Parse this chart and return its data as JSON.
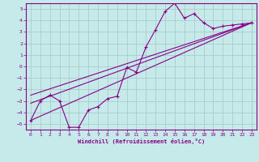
{
  "background_color": "#c6eaea",
  "grid_color": "#aacccc",
  "line_color": "#880088",
  "xlabel": "Windchill (Refroidissement éolien,°C)",
  "xlim": [
    -0.5,
    23.5
  ],
  "ylim": [
    -5.5,
    5.5
  ],
  "yticks": [
    -5,
    -4,
    -3,
    -2,
    -1,
    0,
    1,
    2,
    3,
    4,
    5
  ],
  "xticks": [
    0,
    1,
    2,
    3,
    4,
    5,
    6,
    7,
    8,
    9,
    10,
    11,
    12,
    13,
    14,
    15,
    16,
    17,
    18,
    19,
    20,
    21,
    22,
    23
  ],
  "line1_x": [
    0,
    1,
    2,
    3,
    4,
    5,
    6,
    7,
    8,
    9,
    10,
    11,
    12,
    13,
    14,
    15,
    16,
    17,
    18,
    19,
    20,
    21,
    22,
    23
  ],
  "line1_y": [
    -4.7,
    -3.0,
    -2.5,
    -3.0,
    -5.3,
    -5.3,
    -3.8,
    -3.5,
    -2.8,
    -2.6,
    -0.1,
    -0.5,
    1.7,
    3.2,
    4.8,
    5.5,
    4.2,
    4.6,
    3.8,
    3.3,
    3.5,
    3.6,
    3.7,
    3.8
  ],
  "line2_x": [
    0,
    23
  ],
  "line2_y": [
    -4.7,
    3.8
  ],
  "line3_x": [
    0,
    23
  ],
  "line3_y": [
    -2.5,
    3.8
  ],
  "line4_x": [
    0,
    23
  ],
  "line4_y": [
    -3.2,
    3.8
  ]
}
